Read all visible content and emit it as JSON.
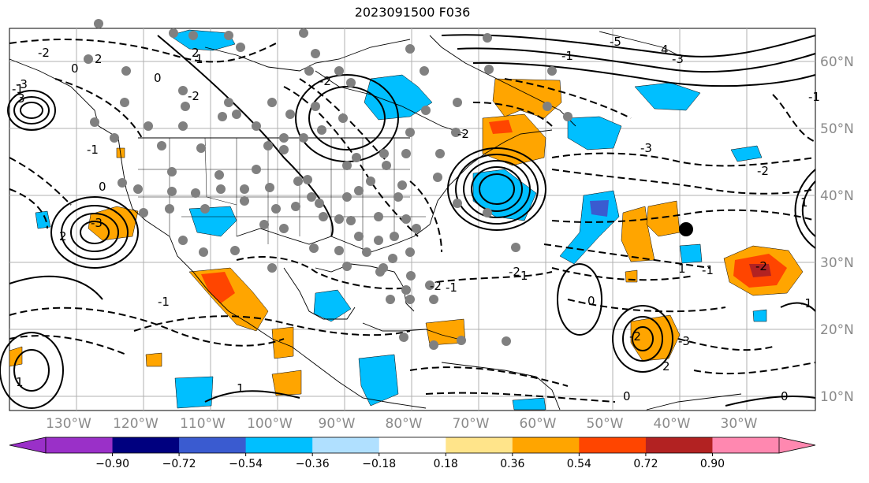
{
  "title": "2023091500 F036",
  "lat_labels": [
    "60°N",
    "50°N",
    "40°N",
    "30°N",
    "20°N",
    "10°N"
  ],
  "lon_labels": [
    "130°W",
    "120°W",
    "110°W",
    "100°W",
    "90°W",
    "80°W",
    "70°W",
    "60°W",
    "50°W",
    "40°W",
    "30°W"
  ],
  "colorbar": {
    "ticks": [
      "−0.90",
      "−0.72",
      "−0.54",
      "−0.36",
      "−0.18",
      "0.18",
      "0.36",
      "0.54",
      "0.72",
      "0.90"
    ],
    "colors": [
      "#9a30c8",
      "#00007f",
      "#3a5bd0",
      "#00bfff",
      "#b0e0ff",
      "#ffffff",
      "#ffe48a",
      "#ffa500",
      "#ff4500",
      "#b22222",
      "#ff88b0",
      "#ff88b0"
    ]
  },
  "contour_labels": [
    "-2",
    "2",
    "0",
    "-2",
    "-3",
    "-2",
    "-1",
    "1",
    "-1",
    "-2",
    "-5",
    "4",
    "-3",
    "3",
    "-3",
    "-3",
    "0",
    "-1",
    "1",
    "-2",
    "-2",
    "1",
    "0",
    "1",
    "-1",
    "2",
    "-3",
    "-1",
    "1",
    "-1",
    "0",
    "-2",
    "2",
    "-2",
    "2",
    "0",
    "-1",
    "1",
    "0",
    "-1",
    "-2"
  ],
  "colors": {
    "land": "#ffffff",
    "grid": "#b0b0b0",
    "station": "#808080",
    "contour": "#000000"
  }
}
